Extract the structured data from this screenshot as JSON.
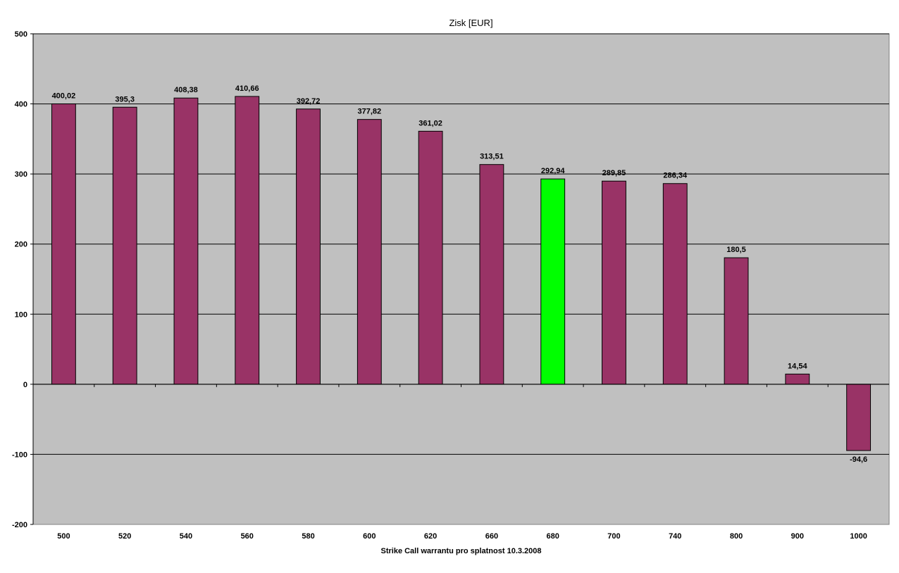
{
  "chart_data": {
    "type": "bar",
    "title": "Zisk [EUR]",
    "xlabel": "Strike Call warrantu pro splatnost 10.3.2008",
    "ylabel": "",
    "ylim": [
      -200,
      500
    ],
    "yticks": [
      500,
      400,
      300,
      200,
      100,
      0,
      -100,
      -200
    ],
    "grid": true,
    "legend": "none",
    "categories": [
      "500",
      "520",
      "540",
      "560",
      "580",
      "600",
      "620",
      "660",
      "680",
      "700",
      "740",
      "800",
      "900",
      "1000"
    ],
    "values": [
      400.02,
      395.3,
      408.38,
      410.66,
      392.72,
      377.82,
      361.02,
      313.51,
      292.94,
      289.85,
      286.34,
      180.5,
      14.54,
      -94.6
    ],
    "data_labels": [
      "400,02",
      "395,3",
      "408,38",
      "410,66",
      "392,72",
      "377,82",
      "361,02",
      "313,51",
      "292,94",
      "289,85",
      "286,34",
      "180,5",
      "14,54",
      "-94,6"
    ],
    "highlight_category": "680",
    "colors": {
      "bar": "#993366",
      "highlight": "#00ff00",
      "plot_background": "#c0c0c0",
      "gridline": "#000000"
    }
  }
}
